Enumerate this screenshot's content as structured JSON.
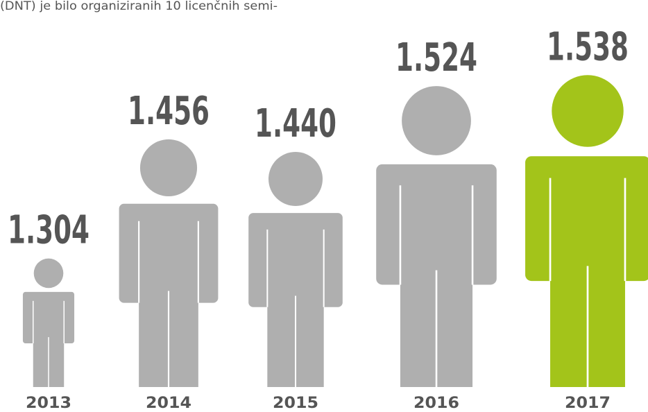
{
  "chart_data": {
    "type": "pictogram",
    "subtitle": "(DNT) je bilo organiziranih 10 licenčnih semi-",
    "categories": [
      "2013",
      "2014",
      "2015",
      "2016",
      "2017"
    ],
    "values": [
      1304,
      1456,
      1440,
      1524,
      1538
    ],
    "value_labels": [
      "1.304",
      "1.456",
      "1.440",
      "1.524",
      "1.538"
    ],
    "colors": [
      "#afafaf",
      "#afafaf",
      "#afafaf",
      "#afafaf",
      "#a3c41a"
    ],
    "ylim": [
      1140,
      1540
    ]
  }
}
